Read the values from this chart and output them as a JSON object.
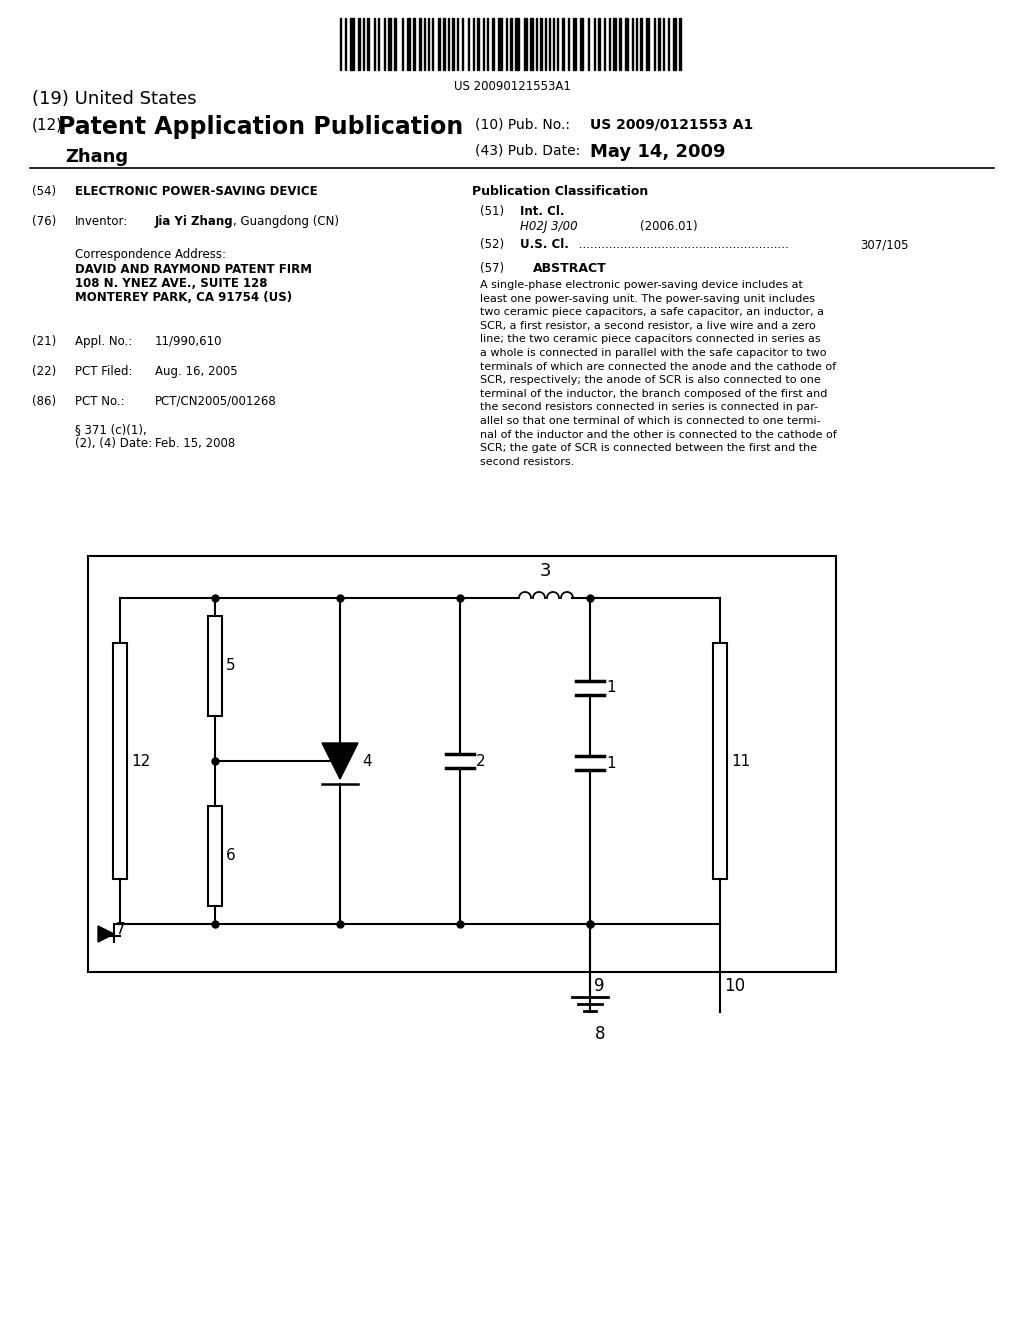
{
  "bg_color": "#ffffff",
  "barcode_text": "US 20090121553A1",
  "title19": "(19) United States",
  "title12_prefix": "(12)",
  "title12_main": "Patent Application Publication",
  "title_name": "Zhang",
  "pub_no_label": "(10) Pub. No.:",
  "pub_no": "US 2009/0121553 A1",
  "pub_date_label": "(43) Pub. Date:",
  "pub_date": "May 14, 2009",
  "field54_label": "(54)",
  "field54": "ELECTRONIC POWER-SAVING DEVICE",
  "pub_class_label": "Publication Classification",
  "field51_label": "(51)",
  "intcl_label": "Int. Cl.",
  "intcl_code": "H02J 3/00",
  "intcl_date": "(2006.01)",
  "field52_label": "(52)",
  "uscl_label": "U.S. Cl.",
  "uscl_dots": " ........................................................",
  "uscl_code": "307/105",
  "field76_label": "(76)",
  "inventor_label": "Inventor:",
  "inventor_bold": "Jia Yi Zhang",
  "inventor_rest": ", Guangdong (CN)",
  "corr_label": "Correspondence Address:",
  "corr_firm": "DAVID AND RAYMOND PATENT FIRM",
  "corr_addr1": "108 N. YNEZ AVE., SUITE 128",
  "corr_addr2": "MONTEREY PARK, CA 91754 (US)",
  "field21_label": "(21)",
  "appl_label": "Appl. No.:",
  "appl_no": "11/990,610",
  "field22_label": "(22)",
  "pct_filed_label": "PCT Filed:",
  "pct_filed": "Aug. 16, 2005",
  "field86_label": "(86)",
  "pct_no_label": "PCT No.:",
  "pct_no": "PCT/CN2005/001268",
  "sec371_label": "§ 371 (c)(1),",
  "sec371b": "(2), (4) Date:",
  "sec371_date": "Feb. 15, 2008",
  "abstract_label": "(57)",
  "abstract_title": "ABSTRACT",
  "abstract_text": "A single-phase electronic power-saving device includes at\nleast one power-saving unit. The power-saving unit includes\ntwo ceramic piece capacitors, a safe capacitor, an inductor, a\nSCR, a first resistor, a second resistor, a live wire and a zero\nline; the two ceramic piece capacitors connected in series as\na whole is connected in parallel with the safe capacitor to two\nterminals of which are connected the anode and the cathode of\nSCR, respectively; the anode of SCR is also connected to one\nterminal of the inductor, the branch composed of the first and\nthe second resistors connected in series is connected in par-\nallel so that one terminal of which is connected to one termi-\nnal of the inductor and the other is connected to the cathode of\nSCR; the gate of SCR is connected between the first and the\nsecond resistors."
}
